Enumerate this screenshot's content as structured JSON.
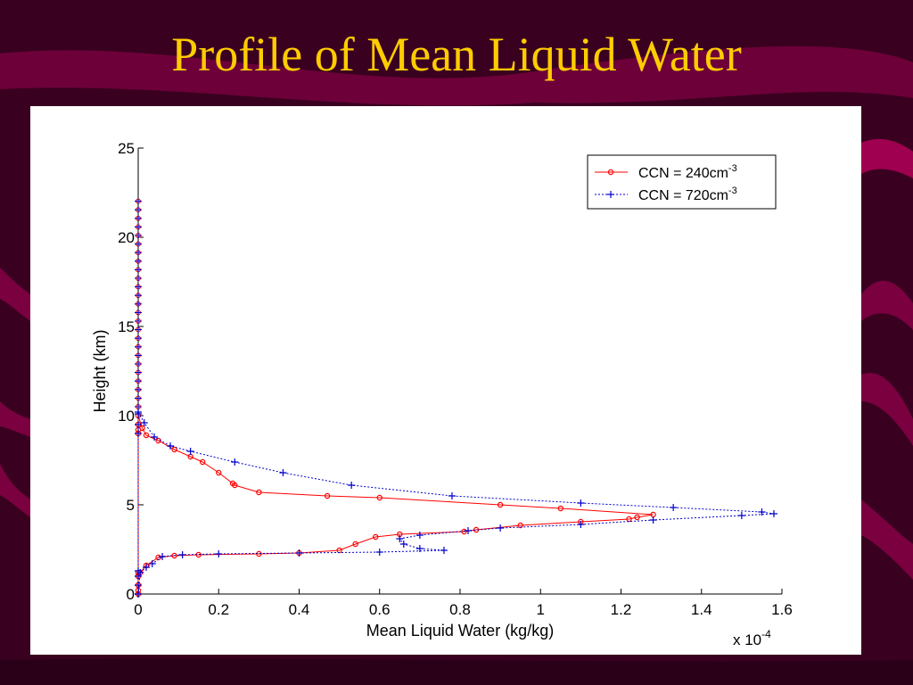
{
  "slide": {
    "title": "Profile of Mean Liquid Water",
    "colors": {
      "background": "#3a0020",
      "ribbon": "#7a0040",
      "title": "#ffcc00",
      "panel": "#ffffff"
    }
  },
  "chart_data": {
    "type": "line",
    "title": "",
    "xlabel": "Mean Liquid Water (kg/kg)",
    "ylabel": "Height (km)",
    "x_multiplier_label": "x 10",
    "x_multiplier_exponent": "-4",
    "xlim": [
      0,
      1.6
    ],
    "ylim": [
      0,
      25
    ],
    "xticks": [
      "0",
      "0.2",
      "0.4",
      "0.6",
      "0.8",
      "1",
      "1.2",
      "1.4",
      "1.6"
    ],
    "yticks": [
      "0",
      "5",
      "10",
      "15",
      "20",
      "25"
    ],
    "grid": false,
    "legend_position": "top-right",
    "series": [
      {
        "name": "CCN = 240cm",
        "name_superscript": "-3",
        "color": "#ff0000",
        "line_style": "solid",
        "marker": "circle",
        "x": [
          0,
          0,
          0,
          0,
          0,
          0,
          0,
          0,
          0.01,
          0.02,
          0.05,
          0.09,
          0.13,
          0.16,
          0.2,
          0.235,
          0.24,
          0.3,
          0.47,
          0.6,
          0.9,
          1.05,
          1.28,
          1.24,
          1.22,
          1.1,
          0.95,
          0.84,
          0.81,
          0.65,
          0.59,
          0.54,
          0.5,
          0.4,
          0.3,
          0.15,
          0.09,
          0.05,
          0.02,
          0.005,
          0,
          0,
          0,
          0
        ],
        "y": [
          0,
          0.5,
          1,
          1.2,
          9,
          9.2,
          9.5,
          10,
          9.3,
          8.9,
          8.6,
          8.1,
          7.7,
          7.4,
          6.8,
          6.2,
          6.1,
          5.7,
          5.5,
          5.4,
          5.0,
          4.8,
          4.45,
          4.3,
          4.2,
          4.05,
          3.85,
          3.6,
          3.5,
          3.35,
          3.2,
          2.8,
          2.45,
          2.3,
          2.25,
          2.2,
          2.15,
          2.05,
          1.6,
          1.2,
          1.0,
          0.5,
          0.2,
          0
        ]
      },
      {
        "name": "CCN = 720cm",
        "name_superscript": "-3",
        "color": "#0000cc",
        "line_style": "dotted",
        "marker": "plus",
        "x": [
          0,
          0,
          0,
          0,
          0,
          0,
          0,
          0,
          0.015,
          0.04,
          0.08,
          0.13,
          0.24,
          0.36,
          0.53,
          0.78,
          1.1,
          1.33,
          1.55,
          1.58,
          1.5,
          1.28,
          1.1,
          0.9,
          0.82,
          0.7,
          0.65,
          0.66,
          0.7,
          0.76,
          0.6,
          0.4,
          0.2,
          0.11,
          0.06,
          0.035,
          0.02,
          0.005,
          0
        ],
        "y": [
          0,
          0.5,
          1,
          1.3,
          9,
          9.5,
          10.1,
          10.2,
          9.6,
          8.8,
          8.3,
          8.0,
          7.4,
          6.8,
          6.1,
          5.5,
          5.1,
          4.85,
          4.6,
          4.5,
          4.4,
          4.15,
          3.9,
          3.7,
          3.55,
          3.3,
          3.1,
          2.8,
          2.55,
          2.45,
          2.35,
          2.3,
          2.25,
          2.2,
          2.1,
          1.7,
          1.5,
          1.2,
          0
        ]
      }
    ]
  }
}
